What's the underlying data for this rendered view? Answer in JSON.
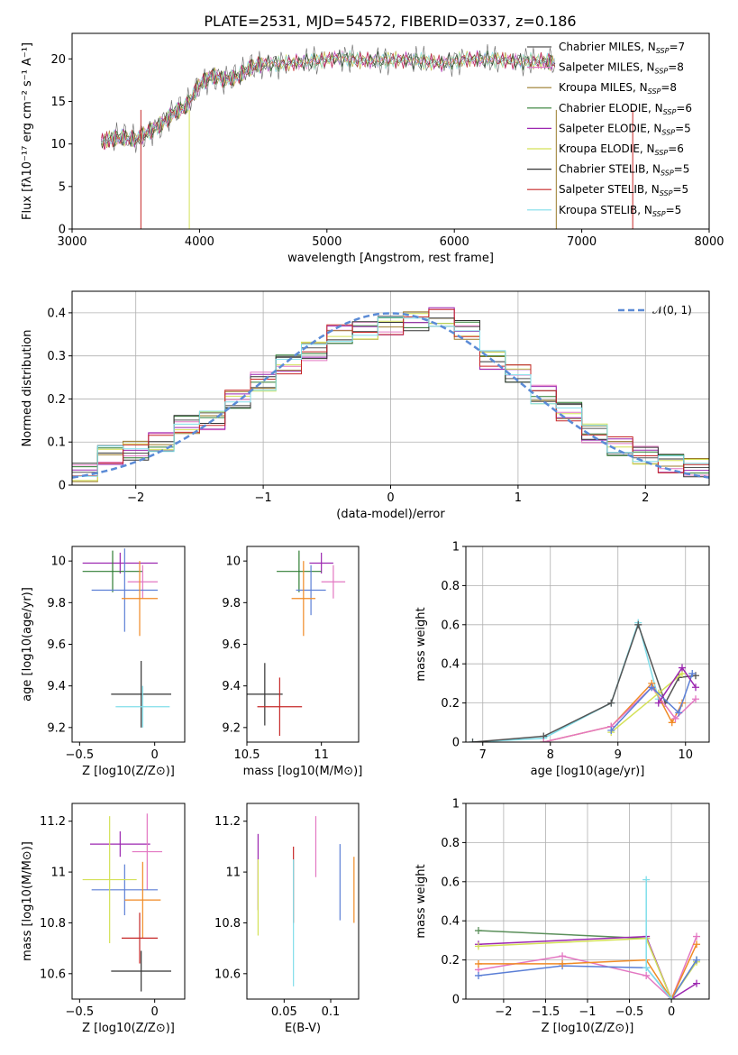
{
  "title": "PLATE=2531, MJD=54572, FIBERID=0337, z=0.186",
  "colors": {
    "Chabrier MILES": "#555555",
    "Salpeter MILES": "#e377c2",
    "Kroupa MILES": "#9a7b2a",
    "Chabrier ELODIE": "#2e7d32",
    "Salpeter ELODIE": "#9c27b0",
    "Kroupa ELODIE": "#d4e157",
    "Chabrier STELIB": "#333333",
    "Salpeter STELIB": "#c62828",
    "Kroupa STELIB": "#80deea",
    "model_blue": "#5b7fd6",
    "model_orange": "#f08a24",
    "model_green": "#5a8f5a",
    "normal_curve": "#5b8bd6"
  },
  "chart_data": [
    {
      "id": "spectrum",
      "type": "line",
      "xlabel": "wavelength [Angstrom, rest frame]",
      "ylabel": "Flux [fλ10⁻¹⁷ erg cm⁻² s⁻¹ A⁻¹]",
      "xlim": [
        3000,
        8000
      ],
      "ylim": [
        0,
        23
      ],
      "xticks": [
        3000,
        4000,
        5000,
        6000,
        7000,
        8000
      ],
      "yticks": [
        0,
        5,
        10,
        15,
        20
      ],
      "legend": [
        "Chabrier MILES, N_SSP=7",
        "Salpeter MILES, N_SSP=8",
        "Kroupa MILES, N_SSP=8",
        "Chabrier ELODIE, N_SSP=6",
        "Salpeter ELODIE, N_SSP=5",
        "Kroupa ELODIE, N_SSP=6",
        "Chabrier STELIB, N_SSP=5",
        "Salpeter STELIB, N_SSP=5",
        "Kroupa STELIB, N_SSP=5"
      ],
      "legend_position": "top-right",
      "data_x": [
        3230,
        3300,
        3400,
        3500,
        3600,
        3700,
        3800,
        3900,
        4000,
        4100,
        4200,
        4300,
        4400,
        4500,
        4700,
        4900,
        5100,
        5300,
        5500,
        5700,
        5900,
        6100,
        6300,
        6500,
        6700,
        6800
      ],
      "data_y": [
        10.2,
        10.6,
        10.8,
        10.5,
        11.4,
        12.3,
        13.7,
        14.5,
        17.0,
        18.0,
        17.6,
        17.9,
        19.0,
        19.4,
        19.5,
        19.7,
        20.1,
        19.8,
        19.9,
        19.8,
        19.5,
        20.0,
        19.9,
        19.7,
        19.8,
        19.5
      ]
    },
    {
      "id": "residuals",
      "type": "line",
      "xlabel": "(data-model)/error",
      "ylabel": "Normed distribution",
      "xlim": [
        -2.5,
        2.5
      ],
      "ylim": [
        0,
        0.45
      ],
      "xticks": [
        -2,
        -1,
        0,
        1,
        2
      ],
      "yticks": [
        0.0,
        0.1,
        0.2,
        0.3,
        0.4
      ],
      "legend": [
        "𝒩(0, 1)"
      ],
      "legend_position": "top-right",
      "grid": true,
      "bin_centers": [
        -2.4,
        -2.2,
        -2.0,
        -1.8,
        -1.6,
        -1.4,
        -1.2,
        -1.0,
        -0.8,
        -0.6,
        -0.4,
        -0.2,
        0.0,
        0.2,
        0.4,
        0.6,
        0.8,
        1.0,
        1.2,
        1.4,
        1.6,
        1.8,
        2.0,
        2.2,
        2.4
      ],
      "hist": [
        0.03,
        0.07,
        0.08,
        0.1,
        0.14,
        0.15,
        0.2,
        0.24,
        0.28,
        0.31,
        0.35,
        0.36,
        0.37,
        0.38,
        0.39,
        0.36,
        0.29,
        0.26,
        0.21,
        0.17,
        0.12,
        0.09,
        0.07,
        0.05,
        0.04
      ]
    },
    {
      "id": "z-vs-age",
      "type": "scatter",
      "xlabel": "Z [log10(Z/Z⊙)]",
      "ylabel": "age  [log10(age/yr)]",
      "xlim": [
        -0.55,
        0.2
      ],
      "ylim": [
        9.13,
        10.07
      ],
      "xticks": [
        -0.5,
        0.0
      ],
      "yticks": [
        9.2,
        9.4,
        9.6,
        9.8,
        10.0
      ],
      "points": [
        {
          "x": -0.23,
          "y": 9.99,
          "xerr": 0.25,
          "yerr": 0.05,
          "c": "#9c27b0"
        },
        {
          "x": -0.28,
          "y": 9.95,
          "xerr": 0.2,
          "yerr": 0.1,
          "c": "#2e7d32"
        },
        {
          "x": -0.08,
          "y": 9.9,
          "xerr": 0.1,
          "yerr": 0.08,
          "c": "#e377c2"
        },
        {
          "x": -0.2,
          "y": 9.86,
          "xerr": 0.22,
          "yerr": 0.2,
          "c": "#5b7fd6"
        },
        {
          "x": -0.1,
          "y": 9.82,
          "xerr": 0.12,
          "yerr": 0.18,
          "c": "#f08a24"
        },
        {
          "x": -0.09,
          "y": 9.36,
          "xerr": 0.2,
          "yerr": 0.16,
          "c": "#333333"
        },
        {
          "x": -0.08,
          "y": 9.3,
          "xerr": 0.18,
          "yerr": 0.1,
          "c": "#80deea"
        }
      ]
    },
    {
      "id": "mass-vs-age",
      "type": "scatter",
      "xlabel": "mass [log10(M/M⊙)]",
      "ylabel": "",
      "xlim": [
        10.5,
        11.25
      ],
      "ylim": [
        9.13,
        10.07
      ],
      "xticks": [
        10.5,
        11.0
      ],
      "yticks": [
        9.2,
        9.4,
        9.6,
        9.8,
        10.0
      ],
      "points": [
        {
          "x": 11.0,
          "y": 9.99,
          "xerr": 0.08,
          "yerr": 0.05,
          "c": "#9c27b0"
        },
        {
          "x": 10.85,
          "y": 9.95,
          "xerr": 0.15,
          "yerr": 0.1,
          "c": "#2e7d32"
        },
        {
          "x": 11.08,
          "y": 9.9,
          "xerr": 0.08,
          "yerr": 0.08,
          "c": "#e377c2"
        },
        {
          "x": 10.93,
          "y": 9.86,
          "xerr": 0.1,
          "yerr": 0.12,
          "c": "#5b7fd6"
        },
        {
          "x": 10.88,
          "y": 9.82,
          "xerr": 0.08,
          "yerr": 0.18,
          "c": "#f08a24"
        },
        {
          "x": 10.62,
          "y": 9.36,
          "xerr": 0.12,
          "yerr": 0.15,
          "c": "#333333"
        },
        {
          "x": 10.72,
          "y": 9.3,
          "xerr": 0.15,
          "yerr": 0.14,
          "c": "#c62828"
        }
      ]
    },
    {
      "id": "age-vs-weight",
      "type": "line",
      "xlabel": "age  [log10(age/yr)]",
      "ylabel": "mass weight",
      "xlim": [
        6.75,
        10.35
      ],
      "ylim": [
        0,
        1
      ],
      "xticks": [
        7,
        8,
        9,
        10
      ],
      "yticks": [
        0.0,
        0.2,
        0.4,
        0.6,
        0.8,
        1.0
      ],
      "grid": true,
      "series": [
        {
          "c": "#80deea",
          "x": [
            6.85,
            7.9,
            8.9,
            9.3,
            9.6
          ],
          "y": [
            0.0,
            0.02,
            0.2,
            0.61,
            0.22
          ]
        },
        {
          "c": "#555555",
          "x": [
            6.85,
            7.9,
            8.9,
            9.3,
            9.7,
            9.9,
            10.15
          ],
          "y": [
            0.0,
            0.03,
            0.2,
            0.6,
            0.2,
            0.33,
            0.34
          ]
        },
        {
          "c": "#f08a24",
          "x": [
            7.9,
            8.9,
            9.5,
            9.8,
            9.95
          ],
          "y": [
            0.0,
            0.08,
            0.3,
            0.1,
            0.2
          ]
        },
        {
          "c": "#e377c2",
          "x": [
            7.9,
            8.9,
            9.5,
            9.85,
            10.15
          ],
          "y": [
            0.0,
            0.08,
            0.28,
            0.12,
            0.22
          ]
        },
        {
          "c": "#d4e157",
          "x": [
            8.9,
            9.6,
            9.95
          ],
          "y": [
            0.05,
            0.25,
            0.35
          ]
        },
        {
          "c": "#5b7fd6",
          "x": [
            8.9,
            9.5,
            9.9,
            10.1
          ],
          "y": [
            0.06,
            0.28,
            0.15,
            0.35
          ]
        },
        {
          "c": "#9c27b0",
          "x": [
            9.6,
            9.95,
            10.15
          ],
          "y": [
            0.2,
            0.38,
            0.28
          ]
        }
      ]
    },
    {
      "id": "z-vs-mass",
      "type": "scatter",
      "xlabel": "Z [log10(Z/Z⊙)]",
      "ylabel": "mass [log10(M/M⊙)]",
      "xlim": [
        -0.55,
        0.2
      ],
      "ylim": [
        10.5,
        11.27
      ],
      "xticks": [
        -0.5,
        0.0
      ],
      "yticks": [
        10.6,
        10.8,
        11.0,
        11.2
      ],
      "points": [
        {
          "x": -0.23,
          "y": 11.11,
          "xerr": 0.2,
          "yerr": 0.05,
          "c": "#9c27b0"
        },
        {
          "x": -0.05,
          "y": 11.08,
          "xerr": 0.1,
          "yerr": 0.15,
          "c": "#e377c2"
        },
        {
          "x": -0.2,
          "y": 10.93,
          "xerr": 0.22,
          "yerr": 0.1,
          "c": "#5b7fd6"
        },
        {
          "x": -0.08,
          "y": 10.89,
          "xerr": 0.12,
          "yerr": 0.15,
          "c": "#f08a24"
        },
        {
          "x": -0.3,
          "y": 10.97,
          "xerr": 0.18,
          "yerr": 0.25,
          "c": "#d4e157"
        },
        {
          "x": -0.1,
          "y": 10.74,
          "xerr": 0.12,
          "yerr": 0.1,
          "c": "#c62828"
        },
        {
          "x": -0.09,
          "y": 10.61,
          "xerr": 0.2,
          "yerr": 0.08,
          "c": "#333333"
        }
      ]
    },
    {
      "id": "ebv-vs-mass",
      "type": "scatter",
      "xlabel": "E(B-V)",
      "ylabel": "",
      "xlim": [
        0.01,
        0.13
      ],
      "ylim": [
        10.5,
        11.27
      ],
      "xticks": [
        0.05,
        0.1
      ],
      "yticks": [
        10.6,
        10.8,
        11.0,
        11.2
      ],
      "points": [
        {
          "x": 0.022,
          "y": 11.0,
          "xerr": 0,
          "yerr": 0.15,
          "c": "#9c27b0"
        },
        {
          "x": 0.022,
          "y": 10.9,
          "xerr": 0,
          "yerr": 0.15,
          "c": "#d4e157"
        },
        {
          "x": 0.06,
          "y": 10.95,
          "xerr": 0,
          "yerr": 0.15,
          "c": "#c62828"
        },
        {
          "x": 0.06,
          "y": 10.8,
          "xerr": 0,
          "yerr": 0.25,
          "c": "#80deea"
        },
        {
          "x": 0.084,
          "y": 11.1,
          "xerr": 0,
          "yerr": 0.12,
          "c": "#e377c2"
        },
        {
          "x": 0.11,
          "y": 10.96,
          "xerr": 0,
          "yerr": 0.15,
          "c": "#5b7fd6"
        },
        {
          "x": 0.125,
          "y": 10.93,
          "xerr": 0,
          "yerr": 0.13,
          "c": "#f08a24"
        }
      ]
    },
    {
      "id": "z-vs-weight",
      "type": "line",
      "xlabel": "Z [log10(Z/Z⊙)]",
      "ylabel": "mass weight",
      "xlim": [
        -2.45,
        0.45
      ],
      "ylim": [
        0,
        1
      ],
      "xticks": [
        -2.0,
        -1.5,
        -1.0,
        -0.5,
        0.0
      ],
      "yticks": [
        0.0,
        0.2,
        0.4,
        0.6,
        0.8,
        1.0
      ],
      "grid": true,
      "series": [
        {
          "c": "#5a8f5a",
          "x": [
            -2.3,
            -0.3,
            0.0,
            0.3
          ],
          "y": [
            0.35,
            0.31,
            0.0,
            0.2
          ]
        },
        {
          "c": "#9c27b0",
          "x": [
            -2.3,
            -0.3,
            0.0,
            0.3
          ],
          "y": [
            0.28,
            0.32,
            0.0,
            0.08
          ]
        },
        {
          "c": "#d4e157",
          "x": [
            -2.3,
            -0.3,
            0.0,
            0.3
          ],
          "y": [
            0.27,
            0.31,
            0.0,
            0.19
          ]
        },
        {
          "c": "#e377c2",
          "x": [
            -2.3,
            -1.3,
            -0.3,
            0.0,
            0.3
          ],
          "y": [
            0.15,
            0.22,
            0.12,
            0.0,
            0.32
          ]
        },
        {
          "c": "#5b7fd6",
          "x": [
            -2.3,
            -1.3,
            -0.3,
            0.0,
            0.3
          ],
          "y": [
            0.12,
            0.17,
            0.16,
            0.0,
            0.2
          ]
        },
        {
          "c": "#f08a24",
          "x": [
            -2.3,
            -1.3,
            -0.3,
            0.0,
            0.3
          ],
          "y": [
            0.18,
            0.18,
            0.2,
            0.0,
            0.28
          ]
        },
        {
          "c": "#80deea",
          "x": [
            -0.3,
            -0.3,
            0.0
          ],
          "y": [
            0.61,
            0.16,
            0.0
          ]
        }
      ]
    }
  ]
}
